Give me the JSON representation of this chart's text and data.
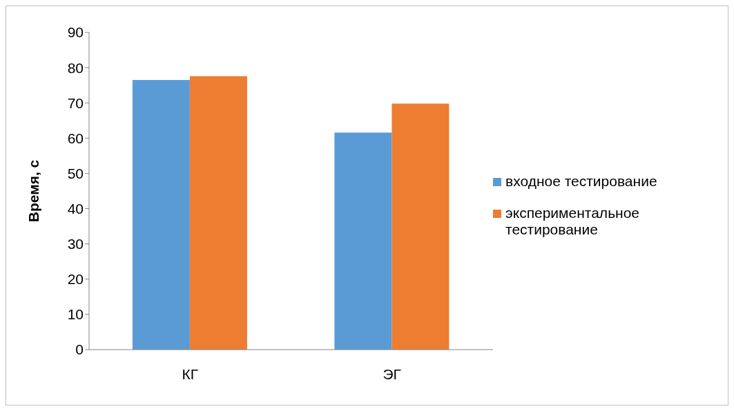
{
  "chart_data": {
    "type": "bar",
    "categories": [
      "КГ",
      "ЭГ"
    ],
    "ylabel": "Время, с",
    "series": [
      {
        "name": "входное тестирование",
        "color": "#5b9bd5",
        "values": [
          76.5,
          61.6
        ]
      },
      {
        "name": "экспериментальное тестирование",
        "color": "#ed7d31",
        "values": [
          77.6,
          69.8
        ]
      }
    ],
    "ylim": [
      0,
      90
    ],
    "yticks": [
      0,
      10,
      20,
      30,
      40,
      50,
      60,
      70,
      80,
      90
    ],
    "grid": false,
    "legend": "right"
  }
}
